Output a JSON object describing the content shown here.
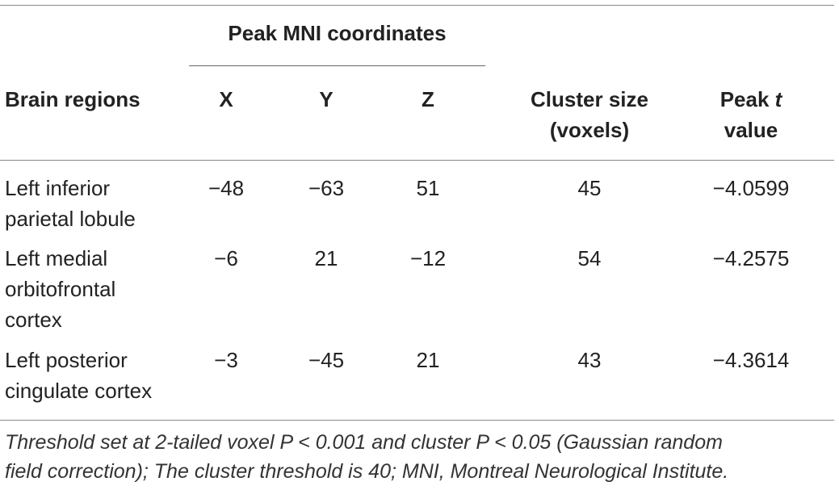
{
  "header": {
    "group_label": "Peak MNI coordinates",
    "columns": {
      "region": "Brain regions",
      "x": "X",
      "y": "Y",
      "z": "Z",
      "cluster_line1": "Cluster size",
      "cluster_line2": "(voxels)",
      "peak_line1": "Peak ",
      "peak_italic": "t",
      "peak_line2": "value"
    }
  },
  "rows": [
    {
      "region_lines": [
        "Left inferior",
        "parietal lobule"
      ],
      "x": "−48",
      "y": "−63",
      "z": "51",
      "cluster_size": "45",
      "peak_t": "−4.0599"
    },
    {
      "region_lines": [
        "Left medial",
        "orbitofrontal",
        "cortex"
      ],
      "x": "−6",
      "y": "21",
      "z": "−12",
      "cluster_size": "54",
      "peak_t": "−4.2575"
    },
    {
      "region_lines": [
        "Left posterior",
        "cingulate cortex"
      ],
      "x": "−3",
      "y": "−45",
      "z": "21",
      "cluster_size": "43",
      "peak_t": "−4.3614"
    }
  ],
  "footnote": {
    "line1": "Threshold set at 2-tailed voxel P < 0.001 and cluster P < 0.05 (Gaussian random",
    "line2": "field correction); The cluster threshold is 40; MNI, Montreal Neurological Institute."
  }
}
